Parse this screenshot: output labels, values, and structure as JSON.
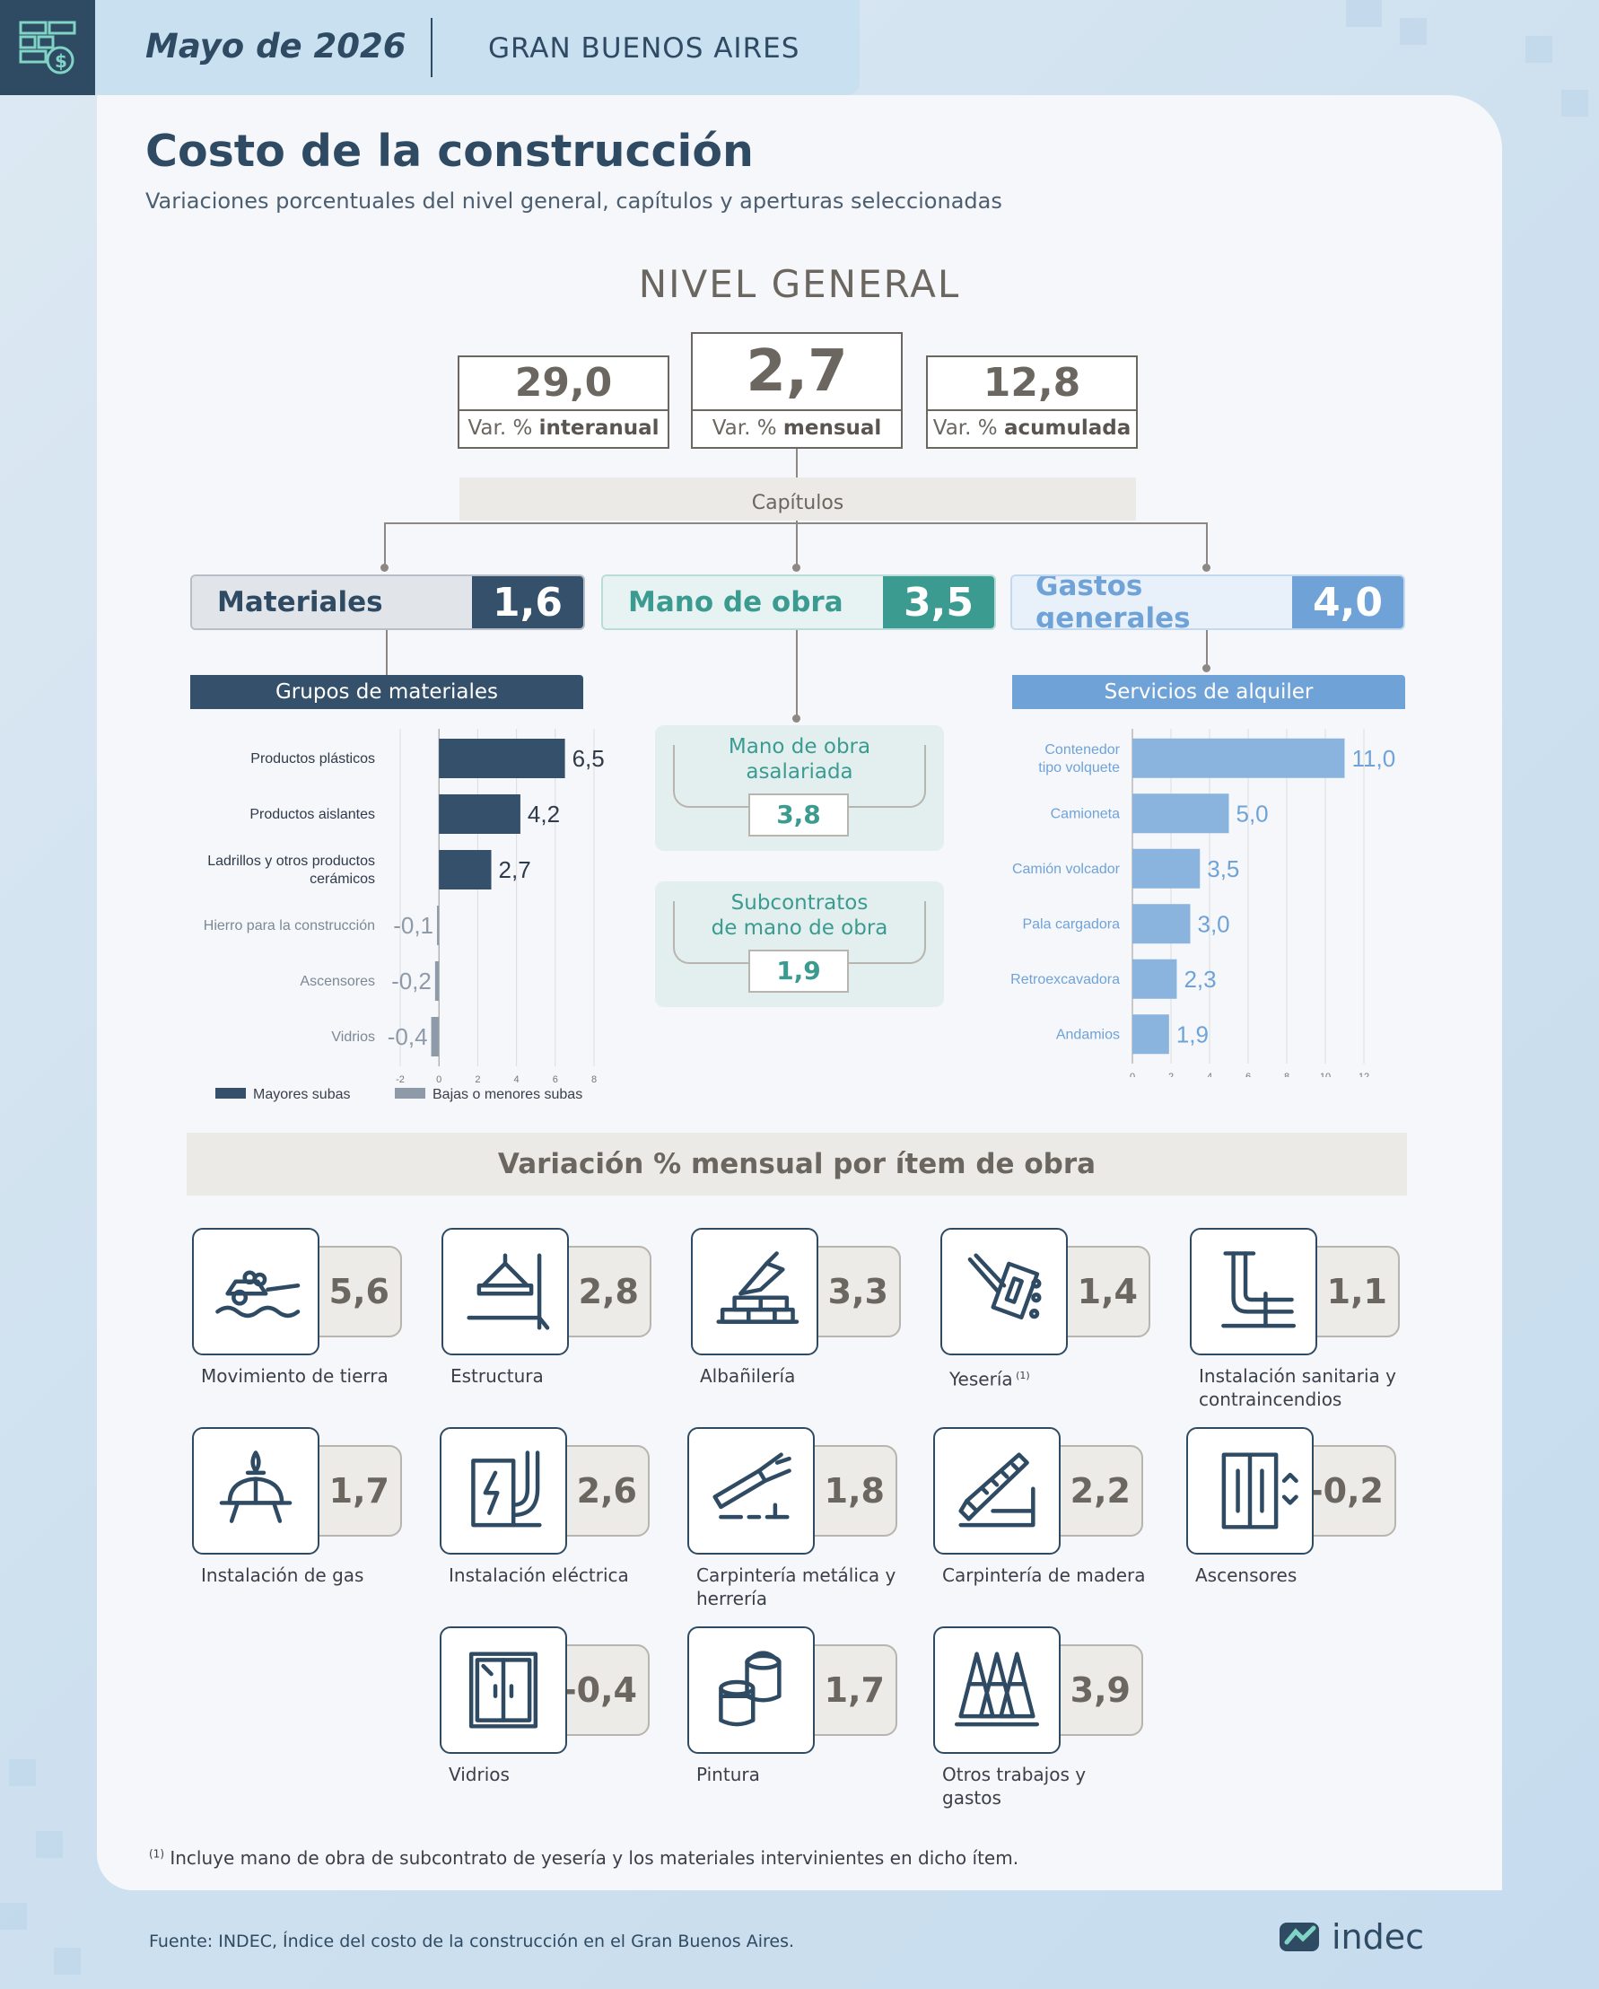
{
  "header": {
    "date": "Mayo de 2026",
    "region": "GRAN BUENOS AIRES"
  },
  "title": "Costo de la construcción",
  "subtitle": "Variaciones porcentuales del nivel general, capítulos y aperturas seleccionadas",
  "nivel_general": {
    "title": "NIVEL GENERAL",
    "interanual": {
      "value": "29,0",
      "label_pre": "Var. % ",
      "label_bold": "interanual"
    },
    "mensual": {
      "value": "2,7",
      "label_pre": "Var. % ",
      "label_bold": "mensual"
    },
    "acumulada": {
      "value": "12,8",
      "label_pre": "Var. % ",
      "label_bold": "acumulada"
    }
  },
  "capitulos_label": "Capítulos",
  "chapters": {
    "materiales": {
      "name": "Materiales",
      "value": "1,6"
    },
    "mano_obra": {
      "name": "Mano de obra",
      "value": "3,5"
    },
    "gastos": {
      "name": "Gastos generales",
      "value": "4,0"
    }
  },
  "grupos_title": "Grupos de materiales",
  "servicios_title": "Servicios de alquiler",
  "mano_obra_detail": {
    "asalariada": {
      "label1": "Mano de obra",
      "label2": "asalariada",
      "value": "3,8"
    },
    "subcontratos": {
      "label1": "Subcontratos",
      "label2": "de mano de obra",
      "value": "1,9"
    }
  },
  "chart_data": [
    {
      "type": "bar",
      "orientation": "horizontal",
      "title": "Grupos de materiales",
      "categories": [
        [
          "Productos plásticos"
        ],
        [
          "Productos aislantes"
        ],
        [
          "Ladrillos y otros productos",
          "cerámicos"
        ],
        [
          "Hierro para la construcción"
        ],
        [
          "Ascensores"
        ],
        [
          "Vidrios"
        ]
      ],
      "values": [
        6.5,
        4.2,
        2.7,
        -0.1,
        -0.2,
        -0.4
      ],
      "value_labels": [
        "6,5",
        "4,2",
        "2,7",
        "-0,1",
        "-0,2",
        "-0,4"
      ],
      "groups": [
        "up",
        "up",
        "up",
        "down",
        "down",
        "down"
      ],
      "xlim": [
        -2,
        8
      ],
      "xticks": [
        -2,
        0,
        2,
        4,
        6,
        8
      ],
      "grid": true,
      "legend": [
        {
          "label": "Mayores subas",
          "color": "#34506b"
        },
        {
          "label": "Bajas o menores subas",
          "color": "#8e9aa8"
        }
      ],
      "legend_position": "bottom"
    },
    {
      "type": "bar",
      "orientation": "horizontal",
      "title": "Servicios de alquiler",
      "categories": [
        [
          "Contenedor",
          "tipo volquete"
        ],
        [
          "Camioneta"
        ],
        [
          "Camión volcador"
        ],
        [
          "Pala cargadora"
        ],
        [
          "Retroexcavadora"
        ],
        [
          "Andamios"
        ]
      ],
      "values": [
        11.0,
        5.0,
        3.5,
        3.0,
        2.3,
        1.9
      ],
      "value_labels": [
        "11,0",
        "5,0",
        "3,5",
        "3,0",
        "2,3",
        "1,9"
      ],
      "xlim": [
        0,
        12
      ],
      "xticks": [
        0,
        2,
        4,
        6,
        8,
        10,
        12
      ],
      "grid": true,
      "color": "#8ab4de"
    }
  ],
  "items_title": "Variación % mensual por ítem de obra",
  "items": [
    {
      "icon": "earthwork-icon",
      "value": "5,6",
      "label": "Movimiento de tierra"
    },
    {
      "icon": "structure-icon",
      "value": "2,8",
      "label": "Estructura"
    },
    {
      "icon": "bricks-icon",
      "value": "3,3",
      "label": "Albañilería"
    },
    {
      "icon": "plaster-icon",
      "value": "1,4",
      "label": "Yesería",
      "sup": "(1)"
    },
    {
      "icon": "pipes-icon",
      "value": "1,1",
      "label": "Instalación sanitaria y contraincendios"
    },
    {
      "icon": "gas-icon",
      "value": "1,7",
      "label": "Instalación de gas"
    },
    {
      "icon": "electric-icon",
      "value": "2,6",
      "label": "Instalación eléctrica"
    },
    {
      "icon": "welding-icon",
      "value": "1,8",
      "label": "Carpintería metálica y herrería"
    },
    {
      "icon": "saw-icon",
      "value": "2,2",
      "label": "Carpintería de madera"
    },
    {
      "icon": "elevator-icon",
      "value": "-0,2",
      "label": "Ascensores"
    },
    {
      "icon": "window-icon",
      "value": "-0,4",
      "label": "Vidrios"
    },
    {
      "icon": "paint-icon",
      "value": "1,7",
      "label": "Pintura"
    },
    {
      "icon": "cones-icon",
      "value": "3,9",
      "label": "Otros trabajos y gastos"
    }
  ],
  "footnote": {
    "sup": "(1)",
    "text": " Incluye mano de obra de subcontrato de yesería y los materiales intervinientes en dicho ítem."
  },
  "source": "Fuente: INDEC, Índice del costo de la construcción en el Gran Buenos Aires.",
  "brand": "indec",
  "colors": {
    "navy": "#2f4a63",
    "teal": "#3b9b91",
    "light_blue": "#6fa3d8",
    "gray": "#6b6660"
  }
}
